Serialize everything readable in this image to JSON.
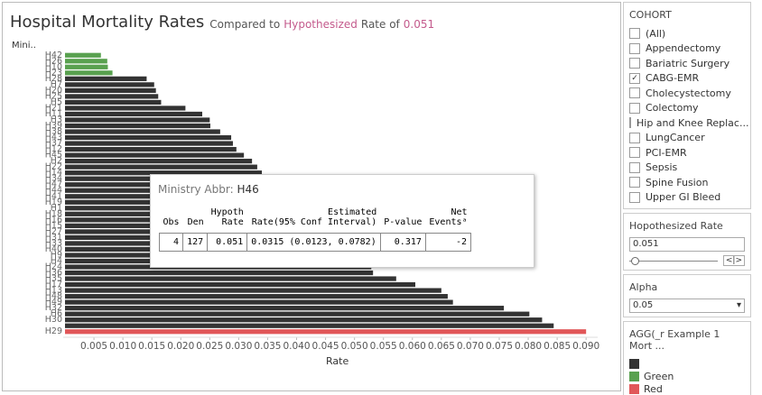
{
  "chart_data": {
    "type": "hbar",
    "title": "Hospital Mortality Rates",
    "subtitle_parts": [
      "Compared to",
      "Hypothesized",
      "Rate of",
      "0.051"
    ],
    "y_label": "Mini..",
    "x_label": "Rate",
    "categories": [
      "H42",
      "H26",
      "H10",
      "H23",
      "H28",
      "H7",
      "H20",
      "H25",
      "H5",
      "H21",
      "H11",
      "H3",
      "H39",
      "H38",
      "H43",
      "H37",
      "H12",
      "H45",
      "H2",
      "H22",
      "H14",
      "H34",
      "H47",
      "H44",
      "H41",
      "H19",
      "H1",
      "H18",
      "H16",
      "H15",
      "H27",
      "H31",
      "H33",
      "H40",
      "H9",
      "H4",
      "H24",
      "H36",
      "H35",
      "H17",
      "H13",
      "H48",
      "H49",
      "H32",
      "H6",
      "H30",
      null,
      "H29"
    ],
    "values": [
      0.0062,
      0.0073,
      0.0074,
      0.0082,
      0.0141,
      0.0154,
      0.0157,
      0.0161,
      0.0166,
      0.0208,
      0.0237,
      0.025,
      0.0251,
      0.0268,
      0.0287,
      0.029,
      0.0296,
      0.0309,
      0.0323,
      0.0332,
      0.034,
      0.035,
      0.036,
      0.037,
      0.038,
      0.039,
      0.04,
      0.041,
      0.042,
      0.043,
      0.044,
      0.045,
      0.046,
      0.048,
      0.05,
      0.052,
      0.0529,
      0.0532,
      0.0572,
      0.0605,
      0.065,
      0.0661,
      0.067,
      0.0758,
      0.0802,
      0.0824,
      0.0844,
      0.09
    ],
    "colors": [
      "#59a14f",
      "#59a14f",
      "#59a14f",
      "#59a14f",
      "#333333",
      "#333333",
      "#333333",
      "#333333",
      "#333333",
      "#333333",
      "#333333",
      "#333333",
      "#333333",
      "#333333",
      "#333333",
      "#333333",
      "#333333",
      "#333333",
      "#333333",
      "#333333",
      "#333333",
      "#333333",
      "#333333",
      "#333333",
      "#333333",
      "#333333",
      "#333333",
      "#333333",
      "#333333",
      "#333333",
      "#333333",
      "#333333",
      "#333333",
      "#333333",
      "#333333",
      "#333333",
      "#333333",
      "#333333",
      "#333333",
      "#333333",
      "#333333",
      "#333333",
      "#333333",
      "#333333",
      "#333333",
      "#333333",
      "#333333",
      "#e15759"
    ],
    "xlim": [
      0,
      0.092
    ],
    "xticks": [
      0.005,
      {
        "value": 0.01,
        "label": "0.010"
      },
      0.015,
      {
        "value": 0.02,
        "label": "0.020"
      },
      0.025,
      {
        "value": 0.03,
        "label": "0.030"
      },
      0.035,
      {
        "value": 0.04,
        "label": "0.040"
      },
      0.045,
      {
        "value": 0.05,
        "label": "0.050"
      },
      0.055,
      {
        "value": 0.06,
        "label": "0.060"
      },
      0.065,
      {
        "value": 0.07,
        "label": "0.070"
      },
      0.075,
      {
        "value": 0.08,
        "label": "0.080"
      },
      0.085,
      {
        "value": 0.09,
        "label": "0.090"
      }
    ]
  },
  "tooltip": {
    "key": "Ministry Abbr:",
    "value": "H46",
    "headers": [
      "Obs",
      "Den",
      "Hypoth\nRate",
      "Estimated\nRate(95% Conf Interval)",
      "P-value",
      "Net\nEventsᵃ"
    ],
    "row": [
      4,
      127,
      0.051,
      "0.0315 (0.0123, 0.0782)",
      0.317,
      -2
    ]
  },
  "sidebar": {
    "cohort": {
      "title": "COHORT",
      "items": [
        {
          "label": "(All)"
        },
        {
          "label": "Appendectomy"
        },
        {
          "label": "Bariatric Surgery"
        },
        {
          "label": "CABG-EMR",
          "checked": true
        },
        {
          "label": "Cholecystectomy"
        },
        {
          "label": "Colectomy"
        },
        {
          "label": "Hip and Knee Replac..."
        },
        {
          "label": "LungCancer"
        },
        {
          "label": "PCI-EMR"
        },
        {
          "label": "Sepsis"
        },
        {
          "label": "Spine Fusion"
        },
        {
          "label": "Upper GI Bleed"
        }
      ]
    },
    "rate": {
      "title": "Hopothesized Rate",
      "value": "0.051"
    },
    "alpha": {
      "title": "Alpha",
      "value": "0.05"
    },
    "legend": {
      "title": "AGG(_r Example 1 Mort ...",
      "items": [
        {
          "color": "#333333"
        },
        {
          "label": "Green",
          "color": "#59a14f"
        },
        {
          "label": "Red",
          "color": "#e15759"
        }
      ]
    }
  }
}
